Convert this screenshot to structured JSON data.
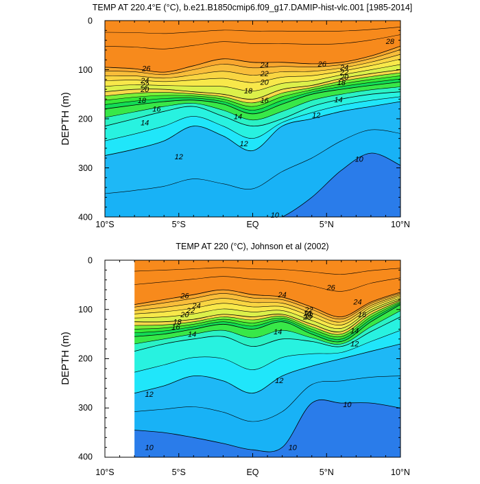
{
  "chart_data": [
    {
      "type": "contour",
      "title": "TEMP AT 220.4°E (°C), b.e21.B1850cmip6.f09_g17.DAMIP-hist-vlc.001 [1985-2014]",
      "xlabel": "",
      "ylabel": "DEPTH (m)",
      "x_ticks": [
        "10°S",
        "5°S",
        "EQ",
        "5°N",
        "10°N"
      ],
      "y_ticks": [
        "0",
        "100",
        "200",
        "300",
        "400"
      ],
      "xlim": [
        -10,
        10
      ],
      "ylim": [
        400,
        0
      ],
      "y_reversed": true,
      "units": "°C",
      "contour_interval": 1,
      "x": [
        -10,
        -8,
        -6,
        -4,
        -2,
        0,
        2,
        4,
        6,
        8,
        10
      ],
      "isotherm_depths": {
        "25": [
          95,
          98,
          105,
          92,
          78,
          85,
          85,
          88,
          85,
          72,
          52
        ],
        "20": [
          145,
          140,
          140,
          145,
          150,
          160,
          140,
          132,
          118,
          108,
          100
        ],
        "16": [
          180,
          172,
          165,
          162,
          170,
          190,
          170,
          150,
          140,
          132,
          125
        ],
        "14": [
          215,
          200,
          185,
          175,
          195,
          215,
          200,
          175,
          160,
          150,
          145
        ],
        "12": [
          275,
          262,
          245,
          215,
          235,
          265,
          215,
          200,
          185,
          175,
          165
        ],
        "10": [
          430,
          430,
          430,
          430,
          430,
          420,
          400,
          360,
          305,
          270,
          295
        ]
      },
      "contour_labels": [
        {
          "text": "26",
          "x": -7.2,
          "y": 97
        },
        {
          "text": "24",
          "x": -7.3,
          "y": 122
        },
        {
          "text": "22",
          "x": -7.3,
          "y": 131
        },
        {
          "text": "20",
          "x": -7.3,
          "y": 140
        },
        {
          "text": "18",
          "x": -7.5,
          "y": 162
        },
        {
          "text": "16",
          "x": -6.5,
          "y": 180
        },
        {
          "text": "14",
          "x": -7.3,
          "y": 208
        },
        {
          "text": "12",
          "x": -5.0,
          "y": 277
        },
        {
          "text": "12",
          "x": -0.6,
          "y": 250
        },
        {
          "text": "14",
          "x": -1.0,
          "y": 195
        },
        {
          "text": "16",
          "x": 0.8,
          "y": 162
        },
        {
          "text": "18",
          "x": -0.3,
          "y": 143
        },
        {
          "text": "20",
          "x": 0.8,
          "y": 125
        },
        {
          "text": "22",
          "x": 0.8,
          "y": 108
        },
        {
          "text": "24",
          "x": 0.8,
          "y": 90
        },
        {
          "text": "26",
          "x": 4.7,
          "y": 88
        },
        {
          "text": "24",
          "x": 6.2,
          "y": 95
        },
        {
          "text": "22",
          "x": 6.2,
          "y": 105
        },
        {
          "text": "20",
          "x": 6.2,
          "y": 115
        },
        {
          "text": "18",
          "x": 6.0,
          "y": 126
        },
        {
          "text": "14",
          "x": 5.8,
          "y": 161
        },
        {
          "text": "12",
          "x": 4.3,
          "y": 192
        },
        {
          "text": "28",
          "x": 9.3,
          "y": 42
        },
        {
          "text": "10",
          "x": 7.2,
          "y": 282
        },
        {
          "text": "10",
          "x": 1.5,
          "y": 396
        }
      ]
    },
    {
      "type": "contour",
      "title": "TEMP AT 220 (°C), Johnson et al (2002)",
      "xlabel": "",
      "ylabel": "DEPTH (m)",
      "x_ticks": [
        "10°S",
        "5°S",
        "EQ",
        "5°N",
        "10°N"
      ],
      "y_ticks": [
        "0",
        "100",
        "200",
        "300",
        "400"
      ],
      "xlim": [
        -10,
        10
      ],
      "ylim": [
        400,
        0
      ],
      "y_reversed": true,
      "units": "°C",
      "contour_interval": 1,
      "data_xlim": [
        -8,
        10
      ],
      "x": [
        -8,
        -6,
        -4,
        -2,
        0,
        2,
        4,
        6,
        8,
        10
      ],
      "isotherm_depths": {
        "25": [
          90,
          80,
          70,
          60,
          70,
          75,
          95,
          115,
          85,
          65
        ],
        "20": [
          125,
          125,
          120,
          110,
          115,
          110,
          130,
          145,
          105,
          80
        ],
        "16": [
          155,
          150,
          140,
          130,
          140,
          125,
          150,
          165,
          125,
          90
        ],
        "14": [
          185,
          170,
          160,
          155,
          175,
          160,
          165,
          175,
          145,
          115
        ],
        "12": [
          270,
          255,
          235,
          245,
          270,
          235,
          215,
          200,
          185,
          170
        ],
        "10": [
          345,
          350,
          360,
          372,
          385,
          380,
          290,
          290,
          290,
          300
        ]
      },
      "contour_labels": [
        {
          "text": "26",
          "x": -4.6,
          "y": 72
        },
        {
          "text": "24",
          "x": -3.8,
          "y": 92
        },
        {
          "text": "22",
          "x": -4.2,
          "y": 102
        },
        {
          "text": "20",
          "x": -4.6,
          "y": 110
        },
        {
          "text": "18",
          "x": -5.1,
          "y": 125
        },
        {
          "text": "16",
          "x": -5.2,
          "y": 135
        },
        {
          "text": "14",
          "x": -4.1,
          "y": 150
        },
        {
          "text": "12",
          "x": -7.0,
          "y": 272
        },
        {
          "text": "12",
          "x": 1.8,
          "y": 244
        },
        {
          "text": "14",
          "x": 1.7,
          "y": 145
        },
        {
          "text": "16",
          "x": 3.7,
          "y": 108
        },
        {
          "text": "18",
          "x": 3.8,
          "y": 112
        },
        {
          "text": "20",
          "x": 3.7,
          "y": 115
        },
        {
          "text": "22",
          "x": 3.8,
          "y": 100
        },
        {
          "text": "24",
          "x": 2.0,
          "y": 70
        },
        {
          "text": "26",
          "x": 5.3,
          "y": 55
        },
        {
          "text": "24",
          "x": 7.1,
          "y": 84
        },
        {
          "text": "16",
          "x": 7.4,
          "y": 110
        },
        {
          "text": "14",
          "x": 6.9,
          "y": 143
        },
        {
          "text": "12",
          "x": 6.9,
          "y": 169
        },
        {
          "text": "10",
          "x": 6.4,
          "y": 293
        },
        {
          "text": "10",
          "x": -7.0,
          "y": 380
        },
        {
          "text": "10",
          "x": 2.7,
          "y": 380
        }
      ]
    }
  ]
}
